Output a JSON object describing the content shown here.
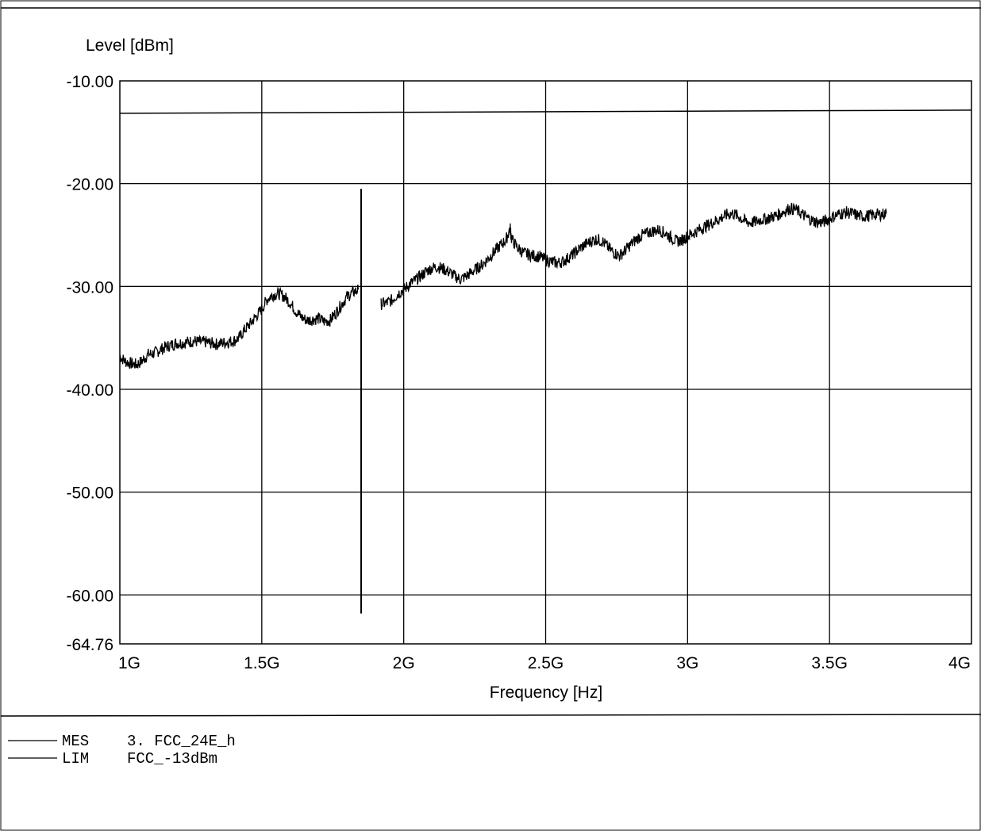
{
  "chart_data": {
    "type": "line",
    "ylabel": "Level [dBm]",
    "xlabel": "Frequency [Hz]",
    "xlim": [
      1000000000,
      4000000000
    ],
    "ylim": [
      -64.76,
      -10
    ],
    "x_ticks": [
      {
        "value": 1000000000,
        "label": "1G"
      },
      {
        "value": 1500000000,
        "label": "1.5G"
      },
      {
        "value": 2000000000,
        "label": "2G"
      },
      {
        "value": 2500000000,
        "label": "2.5G"
      },
      {
        "value": 3000000000,
        "label": "3G"
      },
      {
        "value": 3500000000,
        "label": "3.5G"
      },
      {
        "value": 4000000000,
        "label": "4G"
      }
    ],
    "y_ticks": [
      {
        "value": -10,
        "label": "-10.00"
      },
      {
        "value": -20,
        "label": "-20.00"
      },
      {
        "value": -30,
        "label": "-30.00"
      },
      {
        "value": -40,
        "label": "-40.00"
      },
      {
        "value": -50,
        "label": "-50.00"
      },
      {
        "value": -60,
        "label": "-60.00"
      },
      {
        "value": -64.76,
        "label": "-64.76"
      }
    ],
    "grid": true,
    "limit_line": {
      "name": "LIM",
      "level": -13
    },
    "spike": {
      "x": 1850000000,
      "top": -20.5,
      "bottom": -61.8
    },
    "series": [
      {
        "name": "MES",
        "segments": [
          [
            [
              1000000000,
              -36.8
            ],
            [
              1020000000,
              -37.3
            ],
            [
              1040000000,
              -37.5
            ],
            [
              1060000000,
              -37.6
            ],
            [
              1080000000,
              -37.2
            ],
            [
              1100000000,
              -36.6
            ],
            [
              1120000000,
              -36.5
            ],
            [
              1140000000,
              -36.2
            ],
            [
              1160000000,
              -35.9
            ],
            [
              1180000000,
              -35.7
            ],
            [
              1200000000,
              -35.5
            ],
            [
              1220000000,
              -35.5
            ],
            [
              1240000000,
              -35.4
            ],
            [
              1260000000,
              -35.3
            ],
            [
              1280000000,
              -35.4
            ],
            [
              1300000000,
              -35.4
            ],
            [
              1320000000,
              -35.5
            ],
            [
              1340000000,
              -35.6
            ],
            [
              1360000000,
              -35.5
            ],
            [
              1380000000,
              -35.4
            ],
            [
              1400000000,
              -35.3
            ],
            [
              1420000000,
              -35.0
            ],
            [
              1440000000,
              -34.2
            ],
            [
              1460000000,
              -33.6
            ],
            [
              1480000000,
              -32.9
            ],
            [
              1500000000,
              -32.2
            ],
            [
              1520000000,
              -31.2
            ],
            [
              1540000000,
              -30.8
            ],
            [
              1560000000,
              -30.7
            ],
            [
              1580000000,
              -31.0
            ],
            [
              1600000000,
              -31.6
            ],
            [
              1620000000,
              -32.4
            ],
            [
              1640000000,
              -33.0
            ],
            [
              1660000000,
              -33.3
            ],
            [
              1680000000,
              -33.2
            ],
            [
              1700000000,
              -33.1
            ],
            [
              1720000000,
              -33.4
            ],
            [
              1740000000,
              -33.3
            ],
            [
              1760000000,
              -32.6
            ],
            [
              1780000000,
              -31.8
            ],
            [
              1800000000,
              -31.0
            ],
            [
              1820000000,
              -30.6
            ],
            [
              1840000000,
              -30.3
            ]
          ],
          [
            [
              1920000000,
              -31.7
            ],
            [
              1940000000,
              -31.6
            ],
            [
              1960000000,
              -31.3
            ],
            [
              1980000000,
              -30.7
            ],
            [
              2000000000,
              -30.3
            ],
            [
              2020000000,
              -29.8
            ],
            [
              2040000000,
              -29.4
            ],
            [
              2060000000,
              -29.0
            ],
            [
              2080000000,
              -28.5
            ],
            [
              2100000000,
              -28.2
            ],
            [
              2120000000,
              -28.1
            ],
            [
              2140000000,
              -28.3
            ],
            [
              2160000000,
              -28.6
            ],
            [
              2180000000,
              -29.0
            ],
            [
              2200000000,
              -29.3
            ],
            [
              2220000000,
              -29.0
            ],
            [
              2240000000,
              -28.6
            ],
            [
              2260000000,
              -28.2
            ],
            [
              2280000000,
              -27.8
            ],
            [
              2300000000,
              -27.2
            ],
            [
              2320000000,
              -26.6
            ],
            [
              2340000000,
              -26.0
            ],
            [
              2360000000,
              -25.5
            ],
            [
              2375000000,
              -24.3
            ],
            [
              2380000000,
              -25.4
            ],
            [
              2400000000,
              -26.2
            ],
            [
              2420000000,
              -26.7
            ],
            [
              2440000000,
              -26.9
            ],
            [
              2460000000,
              -27.0
            ],
            [
              2480000000,
              -27.1
            ],
            [
              2500000000,
              -27.4
            ],
            [
              2520000000,
              -27.6
            ],
            [
              2540000000,
              -27.7
            ],
            [
              2560000000,
              -27.6
            ],
            [
              2580000000,
              -27.2
            ],
            [
              2600000000,
              -26.8
            ],
            [
              2620000000,
              -26.3
            ],
            [
              2640000000,
              -25.9
            ],
            [
              2660000000,
              -25.6
            ],
            [
              2680000000,
              -25.4
            ],
            [
              2700000000,
              -25.6
            ],
            [
              2720000000,
              -26.2
            ],
            [
              2740000000,
              -26.7
            ],
            [
              2760000000,
              -27.0
            ],
            [
              2780000000,
              -26.5
            ],
            [
              2800000000,
              -25.9
            ],
            [
              2820000000,
              -25.4
            ],
            [
              2840000000,
              -25.0
            ],
            [
              2860000000,
              -24.8
            ],
            [
              2880000000,
              -24.6
            ],
            [
              2900000000,
              -24.5
            ],
            [
              2920000000,
              -24.8
            ],
            [
              2940000000,
              -25.2
            ],
            [
              2960000000,
              -25.6
            ],
            [
              2980000000,
              -25.5
            ],
            [
              3000000000,
              -25.1
            ],
            [
              3020000000,
              -24.8
            ],
            [
              3040000000,
              -24.5
            ],
            [
              3060000000,
              -24.2
            ],
            [
              3080000000,
              -23.9
            ],
            [
              3100000000,
              -23.6
            ],
            [
              3120000000,
              -23.3
            ],
            [
              3140000000,
              -23.0
            ],
            [
              3160000000,
              -22.9
            ],
            [
              3180000000,
              -23.2
            ],
            [
              3200000000,
              -23.6
            ],
            [
              3220000000,
              -23.8
            ],
            [
              3240000000,
              -23.7
            ],
            [
              3260000000,
              -23.5
            ],
            [
              3280000000,
              -23.4
            ],
            [
              3300000000,
              -23.2
            ],
            [
              3320000000,
              -23.0
            ],
            [
              3340000000,
              -22.7
            ],
            [
              3360000000,
              -22.4
            ],
            [
              3380000000,
              -22.5
            ],
            [
              3400000000,
              -22.9
            ],
            [
              3420000000,
              -23.3
            ],
            [
              3440000000,
              -23.6
            ],
            [
              3460000000,
              -23.8
            ],
            [
              3480000000,
              -23.7
            ],
            [
              3500000000,
              -23.4
            ],
            [
              3520000000,
              -23.1
            ],
            [
              3540000000,
              -22.9
            ],
            [
              3560000000,
              -22.8
            ],
            [
              3580000000,
              -22.9
            ],
            [
              3600000000,
              -23.1
            ],
            [
              3620000000,
              -23.2
            ],
            [
              3640000000,
              -23.1
            ],
            [
              3660000000,
              -23.0
            ],
            [
              3680000000,
              -23.0
            ],
            [
              3700000000,
              -22.9
            ]
          ]
        ]
      }
    ],
    "legend": [
      {
        "key": "MES",
        "text": "3. FCC_24E_h"
      },
      {
        "key": "LIM",
        "text": "FCC_-13dBm"
      }
    ]
  }
}
